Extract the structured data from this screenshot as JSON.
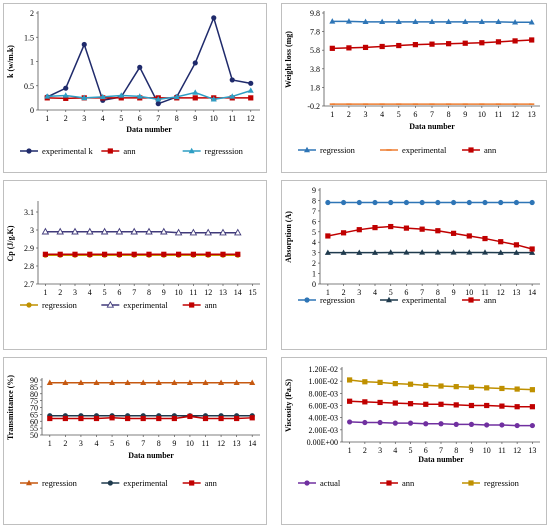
{
  "chart_data": [
    {
      "id": "k",
      "type": "line",
      "xlabel": "Data number",
      "ylabel": "k (w/m.k)",
      "x": [
        1,
        2,
        3,
        4,
        5,
        6,
        7,
        8,
        9,
        10,
        11,
        12
      ],
      "ylim": [
        0,
        2
      ],
      "yticks": [
        "0",
        "0.5",
        "1",
        "1.5",
        "2"
      ],
      "ytick_values": [
        0,
        0.5,
        1,
        1.5,
        2
      ],
      "xticks": [
        "1",
        "2",
        "3",
        "4",
        "5",
        "6",
        "7",
        "8",
        "9",
        "10",
        "11",
        "12"
      ],
      "xtick_values": [
        1,
        2,
        3,
        4,
        5,
        6,
        7,
        8,
        9,
        10,
        11,
        12
      ],
      "xrange": [
        0.5,
        12.5
      ],
      "grid": false,
      "legend_position": "bottom",
      "series": [
        {
          "name": "experimental k",
          "color": "#1f2a6b",
          "marker": "circle",
          "values": [
            0.27,
            0.45,
            1.35,
            0.2,
            0.27,
            0.88,
            0.13,
            0.27,
            0.97,
            1.9,
            0.62,
            0.55
          ]
        },
        {
          "name": "ann",
          "color": "#c00000",
          "marker": "square",
          "values": [
            0.25,
            0.24,
            0.25,
            0.25,
            0.25,
            0.25,
            0.25,
            0.25,
            0.25,
            0.25,
            0.25,
            0.25
          ]
        },
        {
          "name": "regresssion",
          "color": "#2e9ec4",
          "marker": "triangle",
          "values": [
            0.28,
            0.3,
            0.25,
            0.27,
            0.3,
            0.28,
            0.22,
            0.27,
            0.36,
            0.22,
            0.28,
            0.4
          ]
        }
      ]
    },
    {
      "id": "weight",
      "type": "line",
      "xlabel": "Data number",
      "ylabel": "Weight loss (mg)",
      "x": [
        1,
        2,
        3,
        4,
        5,
        6,
        7,
        8,
        9,
        10,
        11,
        12,
        13
      ],
      "ylim": [
        -0.2,
        9.8
      ],
      "yticks": [
        "-0.2",
        "1.8",
        "3.8",
        "5.8",
        "7.8",
        "9.8"
      ],
      "ytick_values": [
        -0.2,
        1.8,
        3.8,
        5.8,
        7.8,
        9.8
      ],
      "xticks": [
        "1",
        "2",
        "3",
        "4",
        "5",
        "6",
        "7",
        "8",
        "9",
        "10",
        "11",
        "12",
        "13"
      ],
      "xtick_values": [
        1,
        2,
        3,
        4,
        5,
        6,
        7,
        8,
        9,
        10,
        11,
        12,
        13
      ],
      "xrange": [
        0.5,
        13.5
      ],
      "grid": false,
      "legend_position": "bottom",
      "series": [
        {
          "name": "regression",
          "color": "#2e75b6",
          "marker": "triangle",
          "values": [
            8.9,
            8.9,
            8.85,
            8.85,
            8.85,
            8.85,
            8.85,
            8.85,
            8.85,
            8.85,
            8.85,
            8.8,
            8.8
          ]
        },
        {
          "name": "experimental",
          "color": "#ed7d31",
          "marker": "dash",
          "values": [
            0,
            0,
            0,
            0,
            0,
            0,
            0,
            0,
            0,
            0,
            0,
            0,
            0
          ]
        },
        {
          "name": "ann",
          "color": "#c00000",
          "marker": "square",
          "values": [
            6,
            6.05,
            6.1,
            6.2,
            6.3,
            6.4,
            6.45,
            6.5,
            6.55,
            6.6,
            6.7,
            6.8,
            6.9
          ]
        }
      ]
    },
    {
      "id": "cp",
      "type": "line",
      "xlabel": "",
      "ylabel": "Cp (J/g.K)",
      "x": [
        1,
        2,
        3,
        4,
        5,
        6,
        7,
        8,
        9,
        10,
        11,
        12,
        13,
        14
      ],
      "ylim": [
        2.7,
        3.15
      ],
      "yticks": [
        "2.7",
        "2.8",
        "2.9",
        "3",
        "3.1"
      ],
      "ytick_values": [
        2.7,
        2.8,
        2.9,
        3,
        3.1
      ],
      "xticks": [
        "1",
        "2",
        "3",
        "4",
        "5",
        "6",
        "7",
        "8",
        "9",
        "10",
        "11",
        "12",
        "13",
        "14",
        "15"
      ],
      "xtick_values": [
        1,
        2,
        3,
        4,
        5,
        6,
        7,
        8,
        9,
        10,
        11,
        12,
        13,
        14,
        15
      ],
      "xrange": [
        0.5,
        15.5
      ],
      "grid": false,
      "legend_position": "bottom",
      "series": [
        {
          "name": "regression",
          "color": "#bf9000",
          "marker": "circle",
          "values": [
            2.86,
            2.86,
            2.86,
            2.86,
            2.86,
            2.86,
            2.86,
            2.86,
            2.86,
            2.86,
            2.86,
            2.86,
            2.86,
            2.86
          ]
        },
        {
          "name": "experimental",
          "color": "#403a7a",
          "marker": "triangle-open",
          "values": [
            2.99,
            2.99,
            2.99,
            2.99,
            2.99,
            2.99,
            2.99,
            2.99,
            2.99,
            2.985,
            2.985,
            2.985,
            2.985,
            2.985
          ]
        },
        {
          "name": "ann",
          "color": "#c00000",
          "marker": "square",
          "values": [
            2.865,
            2.865,
            2.865,
            2.865,
            2.865,
            2.865,
            2.865,
            2.865,
            2.865,
            2.865,
            2.865,
            2.865,
            2.865,
            2.865
          ]
        }
      ]
    },
    {
      "id": "absorption",
      "type": "line",
      "xlabel": "",
      "ylabel": "Absorption (A)",
      "x": [
        1,
        2,
        3,
        4,
        5,
        6,
        7,
        8,
        9,
        10,
        11,
        12,
        13,
        14
      ],
      "ylim": [
        0,
        9
      ],
      "yticks": [
        "0",
        "1",
        "2",
        "3",
        "4",
        "5",
        "6",
        "7",
        "8",
        "9"
      ],
      "ytick_values": [
        0,
        1,
        2,
        3,
        4,
        5,
        6,
        7,
        8,
        9
      ],
      "xticks": [
        "1",
        "2",
        "3",
        "4",
        "5",
        "6",
        "7",
        "8",
        "9",
        "10",
        "11",
        "12",
        "13",
        "14"
      ],
      "xtick_values": [
        1,
        2,
        3,
        4,
        5,
        6,
        7,
        8,
        9,
        10,
        11,
        12,
        13,
        14
      ],
      "xrange": [
        0.5,
        14.5
      ],
      "grid": false,
      "legend_position": "bottom",
      "series": [
        {
          "name": "regression",
          "color": "#2e75b6",
          "marker": "circle",
          "values": [
            7.8,
            7.8,
            7.8,
            7.8,
            7.8,
            7.8,
            7.8,
            7.8,
            7.8,
            7.8,
            7.8,
            7.8,
            7.8,
            7.8
          ]
        },
        {
          "name": "experimental",
          "color": "#1f3a4d",
          "marker": "triangle",
          "values": [
            3,
            3,
            3,
            3,
            3.02,
            3.02,
            3.02,
            3.02,
            3.02,
            3.02,
            3.02,
            3,
            3,
            3
          ]
        },
        {
          "name": "ann",
          "color": "#c00000",
          "marker": "square",
          "values": [
            4.6,
            4.9,
            5.2,
            5.4,
            5.5,
            5.35,
            5.25,
            5.1,
            4.85,
            4.6,
            4.35,
            4.05,
            3.75,
            3.35
          ]
        }
      ]
    },
    {
      "id": "transmittance",
      "type": "line",
      "xlabel": "Data number",
      "ylabel": "Transmittance (%)",
      "x": [
        1,
        2,
        3,
        4,
        5,
        6,
        7,
        8,
        9,
        10,
        11,
        12,
        13,
        14
      ],
      "ylim": [
        50,
        90
      ],
      "yticks": [
        "50",
        "55",
        "60",
        "65",
        "70",
        "75",
        "80",
        "85",
        "90"
      ],
      "ytick_values": [
        50,
        55,
        60,
        65,
        70,
        75,
        80,
        85,
        90
      ],
      "xticks": [
        "1",
        "2",
        "3",
        "4",
        "5",
        "6",
        "7",
        "8",
        "9",
        "10",
        "11",
        "12",
        "13",
        "14"
      ],
      "xtick_values": [
        1,
        2,
        3,
        4,
        5,
        6,
        7,
        8,
        9,
        10,
        11,
        12,
        13,
        14
      ],
      "xrange": [
        0.5,
        14.5
      ],
      "grid": false,
      "legend_position": "bottom",
      "series": [
        {
          "name": "regression",
          "color": "#c65911",
          "marker": "triangle",
          "values": [
            88,
            88,
            88,
            88,
            88,
            88,
            88,
            88,
            88,
            88,
            88,
            88,
            88,
            88
          ]
        },
        {
          "name": "experimental",
          "color": "#1f3a4d",
          "marker": "circle",
          "values": [
            64,
            64,
            64,
            64,
            64,
            64,
            64,
            64,
            64,
            64,
            64,
            64,
            64,
            64
          ]
        },
        {
          "name": "ann",
          "color": "#c00000",
          "marker": "square",
          "values": [
            62,
            62,
            62,
            62,
            62.5,
            62,
            62,
            62,
            62,
            63.5,
            62,
            62,
            62,
            62.5
          ]
        }
      ]
    },
    {
      "id": "viscosity",
      "type": "line",
      "xlabel": "Data number",
      "ylabel": "Viscosity (Pa.S)",
      "x": [
        1,
        2,
        3,
        4,
        5,
        6,
        7,
        8,
        9,
        10,
        11,
        12,
        13
      ],
      "ylim": [
        0,
        0.012
      ],
      "yticks": [
        "0.00E+00",
        "2.00E-03",
        "4.00E-03",
        "6.00E-03",
        "8.00E-03",
        "1.00E-02",
        "1.20E-02"
      ],
      "ytick_values": [
        0,
        0.002,
        0.004,
        0.006,
        0.008,
        0.01,
        0.012
      ],
      "xticks": [
        "1",
        "2",
        "3",
        "4",
        "5",
        "6",
        "7",
        "8",
        "9",
        "10",
        "11",
        "12",
        "13"
      ],
      "xtick_values": [
        1,
        2,
        3,
        4,
        5,
        6,
        7,
        8,
        9,
        10,
        11,
        12,
        13
      ],
      "xrange": [
        0.5,
        13.5
      ],
      "grid": false,
      "legend_position": "bottom",
      "series": [
        {
          "name": "actual",
          "color": "#7030a0",
          "marker": "circle",
          "values": [
            0.0033,
            0.0032,
            0.0032,
            0.0031,
            0.0031,
            0.003,
            0.003,
            0.0029,
            0.0029,
            0.0028,
            0.0028,
            0.0027,
            0.0027
          ]
        },
        {
          "name": "ann",
          "color": "#c00000",
          "marker": "square",
          "values": [
            0.0067,
            0.0066,
            0.0065,
            0.0064,
            0.0063,
            0.0062,
            0.0062,
            0.0061,
            0.006,
            0.006,
            0.0059,
            0.0058,
            0.0058
          ]
        },
        {
          "name": "regression",
          "color": "#bf9000",
          "marker": "square",
          "values": [
            0.0102,
            0.0099,
            0.0098,
            0.0096,
            0.0095,
            0.0093,
            0.0092,
            0.0091,
            0.009,
            0.0089,
            0.0088,
            0.0087,
            0.0086
          ]
        }
      ]
    }
  ]
}
